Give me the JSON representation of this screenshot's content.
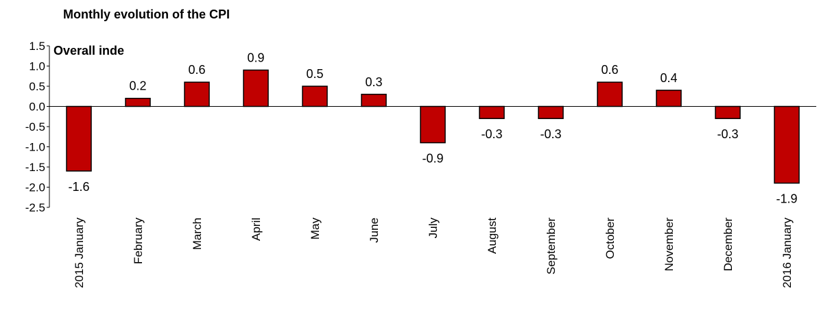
{
  "chart_data": {
    "type": "bar",
    "title": "Monthly evolution of the CPI",
    "annotation": "Overall inde",
    "categories": [
      "2015 January",
      "February",
      "March",
      "April",
      "May",
      "June",
      "July",
      "August",
      "September",
      "October",
      "November",
      "December",
      "2016 January"
    ],
    "values": [
      -1.6,
      0.2,
      0.6,
      0.9,
      0.5,
      0.3,
      -0.9,
      -0.3,
      -0.3,
      0.6,
      0.4,
      -0.3,
      -1.9
    ],
    "color": "#c00000",
    "ylim": [
      -2.5,
      1.5
    ],
    "yticks": [
      1.5,
      {
        "value": 1,
        "label": "1.0"
      },
      0.5,
      {
        "value": 0,
        "label": "0.0"
      },
      -0.5,
      {
        "value": -1,
        "label": "-1.0"
      },
      -1.5,
      {
        "value": -2,
        "label": "-2.0"
      },
      -2.5
    ],
    "grid": false
  }
}
